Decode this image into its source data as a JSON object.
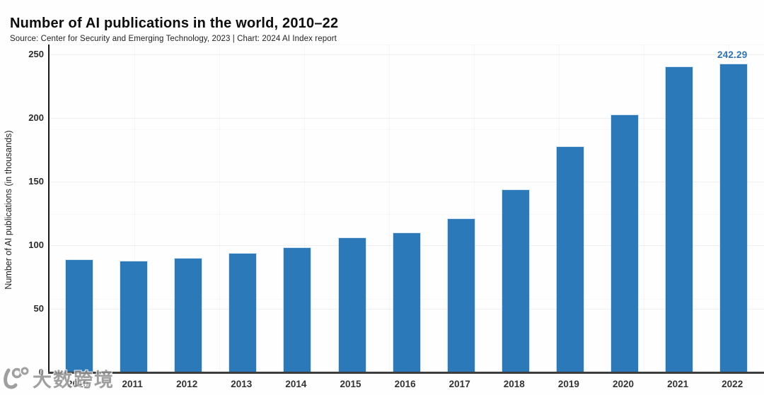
{
  "chart_data": {
    "type": "bar",
    "title": "Number of AI publications in the world, 2010–22",
    "subtitle": "Source: Center for Security and Emerging Technology, 2023 | Chart: 2024 AI Index report",
    "ylabel": "Number of AI publications (in thousands)",
    "xlabel": "",
    "categories": [
      "2010",
      "2011",
      "2012",
      "2013",
      "2014",
      "2015",
      "2016",
      "2017",
      "2018",
      "2019",
      "2020",
      "2021",
      "2022"
    ],
    "values": [
      88.2,
      87.5,
      89.7,
      93.3,
      98.0,
      105.3,
      109.2,
      120.7,
      143.5,
      177.4,
      202.0,
      240.0,
      242.29
    ],
    "point_labels": [
      "",
      "",
      "",
      "",
      "",
      "",
      "",
      "",
      "",
      "",
      "",
      "",
      "242.29"
    ],
    "yticks": [
      0,
      50,
      100,
      150,
      200,
      250
    ],
    "ylim": [
      0,
      257
    ],
    "grid": true,
    "legend": null,
    "bar_color": "#2b79b9",
    "point_label_color": "#2e74b5"
  },
  "watermark": {
    "logo": "10100-swirl-logo",
    "text": "大数跨境"
  }
}
